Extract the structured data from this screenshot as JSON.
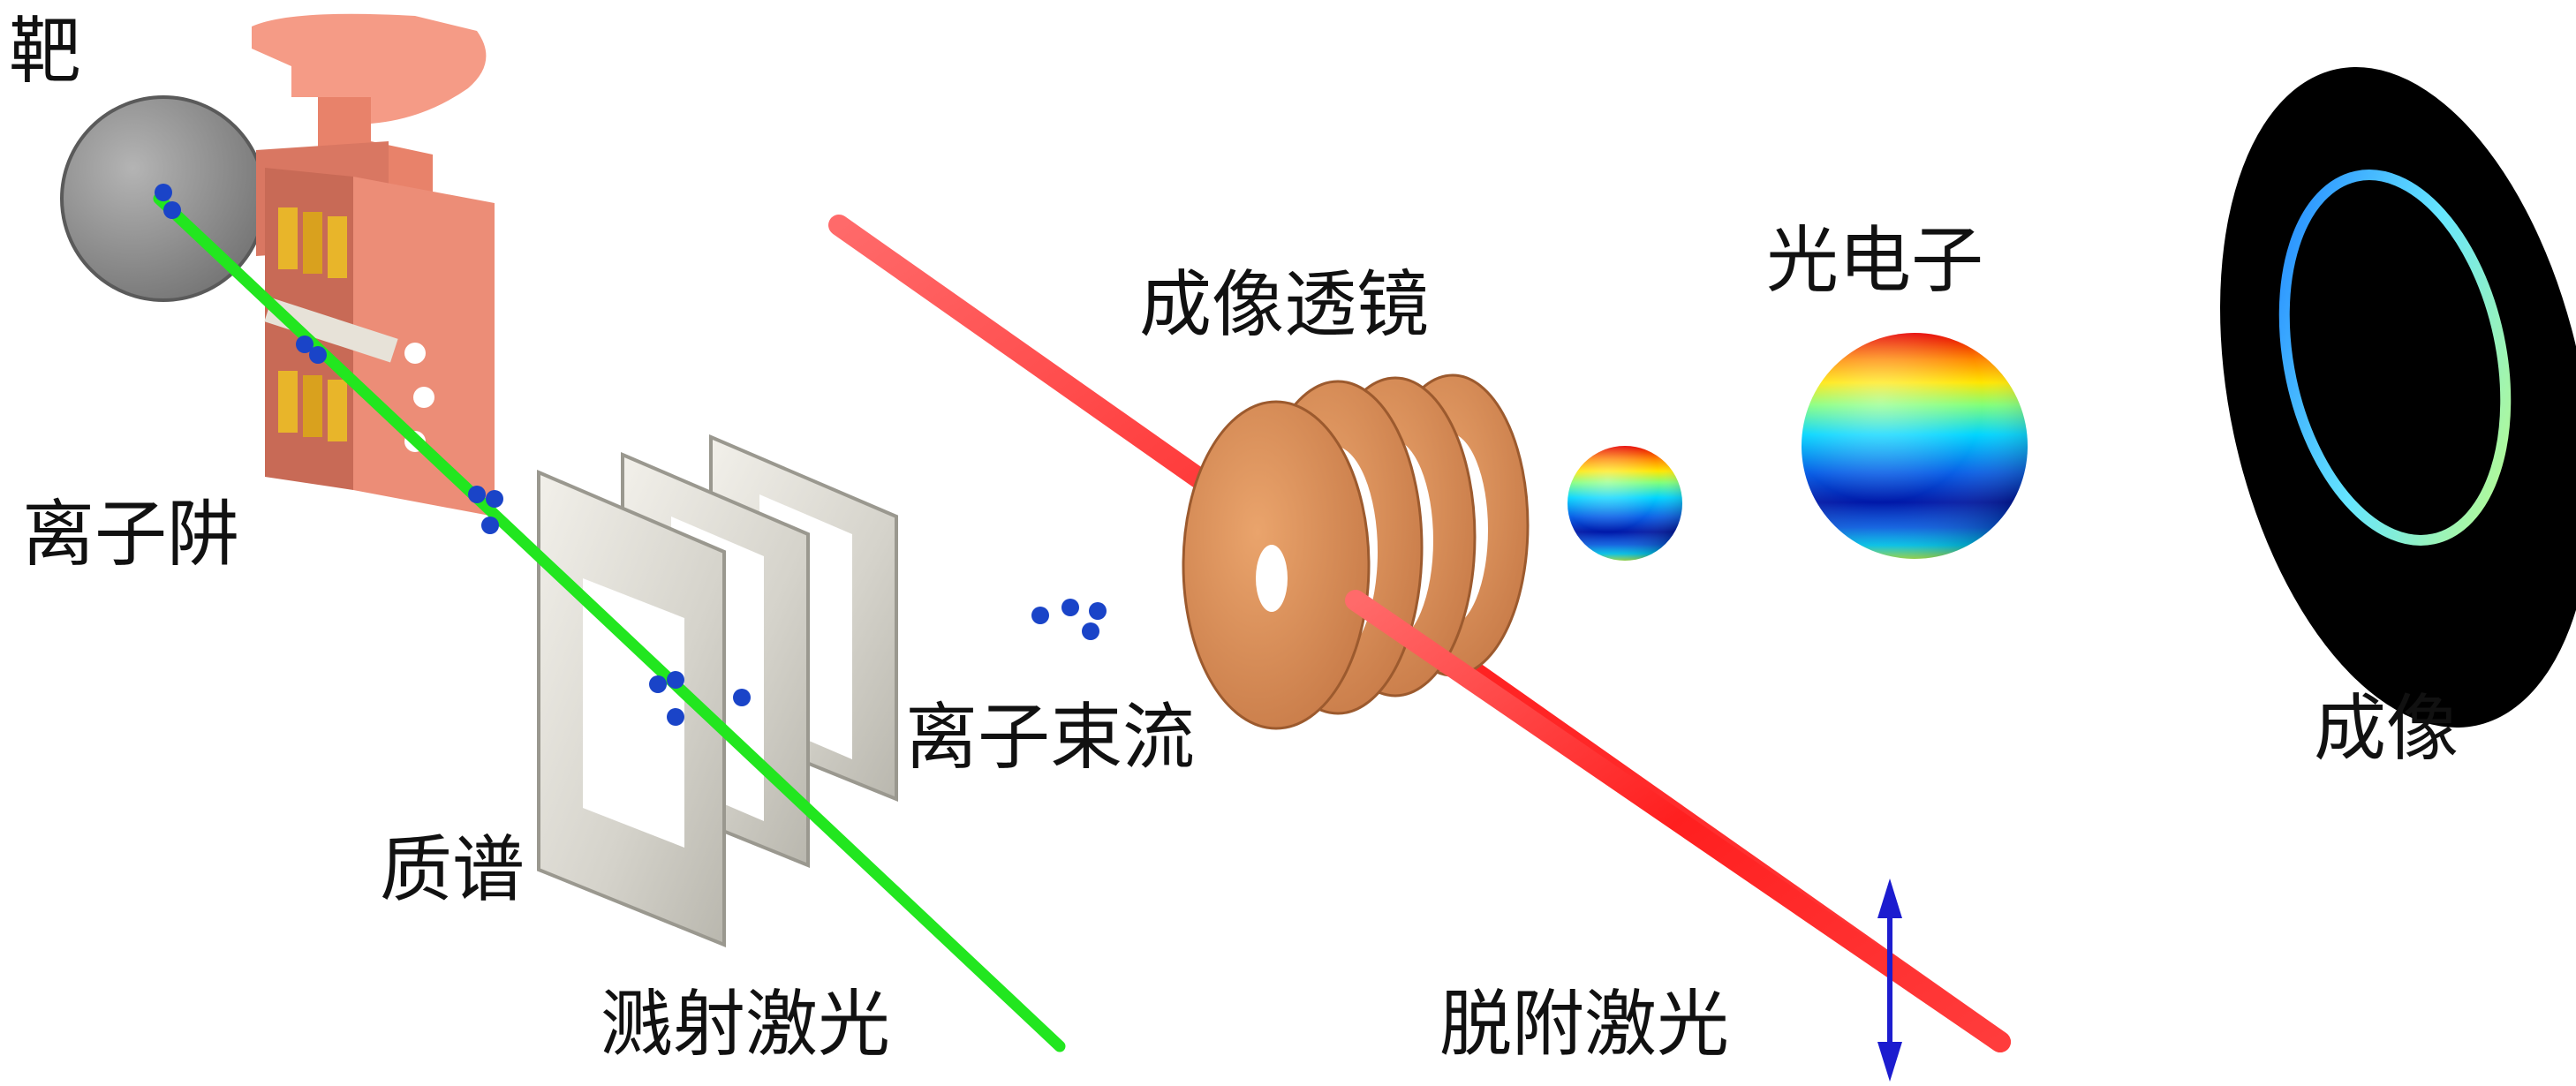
{
  "labels": {
    "target": "靶",
    "ion_trap": "离子阱",
    "mass_spec": "质谱",
    "sputter_laser": "溅射激光",
    "ion_beam": "离子束流",
    "imaging_lens": "成像透镜",
    "photoelectron": "光电子",
    "imaging": "成像",
    "detach_laser": "脱附激光"
  },
  "colors": {
    "sputter_laser": "#22e61f",
    "detach_laser": "#ff2a2a",
    "ion": "#1a44c8",
    "trap_body": "#ef8c76",
    "trap_electrode": "#e8b52a",
    "target_disk": "#8a8a8a",
    "mass_plate": "#d9d7cf",
    "lens": "#d68a52",
    "detector_bg": "#000000",
    "polarization_arrow": "#1c1ccf"
  }
}
